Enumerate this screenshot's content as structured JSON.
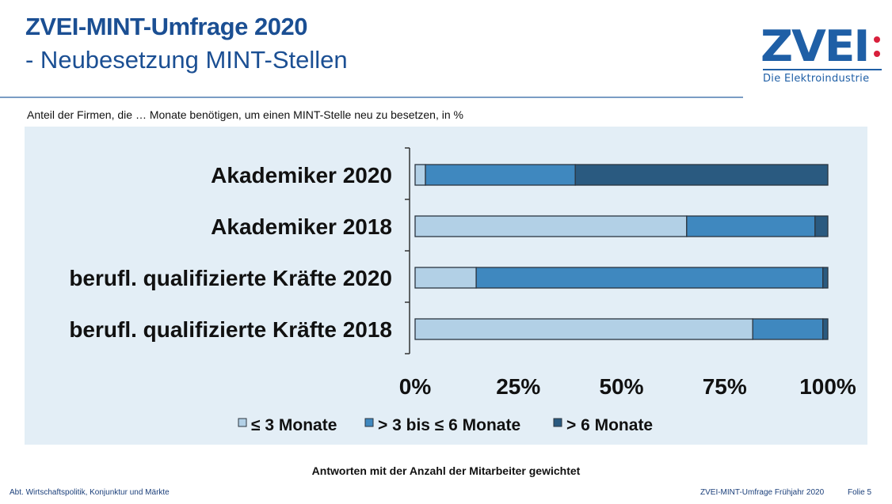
{
  "header": {
    "title": "ZVEI-MINT-Umfrage 2020",
    "subtitle": "- Neubesetzung MINT-Stellen"
  },
  "logo": {
    "wordmark": "ZVEI",
    "tagline": "Die Elektroindustrie",
    "dot_color": "#d8203c",
    "brand_color": "#1f5fa6"
  },
  "caption": "Anteil der Firmen, die … Monate benötigen, um einen MINT-Stelle neu zu besetzen, in %",
  "note": "Antworten mit der Anzahl der Mitarbeiter gewichtet",
  "footer": {
    "left": "Abt. Wirtschaftspolitik, Konjunktur und Märkte",
    "right": "ZVEI-MINT-Umfrage Frühjahr 2020",
    "page": "Folie 5"
  },
  "chart_data": {
    "type": "bar",
    "orientation": "horizontal",
    "stacked": true,
    "normalized": true,
    "title": "",
    "xlabel": "",
    "ylabel": "",
    "xlim": [
      0,
      100
    ],
    "xticks": [
      "0%",
      "25%",
      "50%",
      "75%",
      "100%"
    ],
    "categories": [
      "Akademiker 2020",
      "Akademiker 2018",
      "berufl. qualifizierte Kräfte 2020",
      "berufl. qualifizierte Kräfte 2018"
    ],
    "series": [
      {
        "name": "≤ 3 Monate",
        "color": "#b2d0e6",
        "values": [
          2.5,
          65.8,
          14.8,
          81.8
        ]
      },
      {
        "name": "> 3 bis ≤ 6 Monate",
        "color": "#3f88bf",
        "values": [
          36.3,
          31.1,
          84.0,
          17.0
        ]
      },
      {
        "name": "> 6 Monate",
        "color": "#2a5a80",
        "values": [
          61.2,
          3.1,
          1.2,
          1.2
        ]
      }
    ],
    "legend_position": "bottom",
    "grid": false
  }
}
